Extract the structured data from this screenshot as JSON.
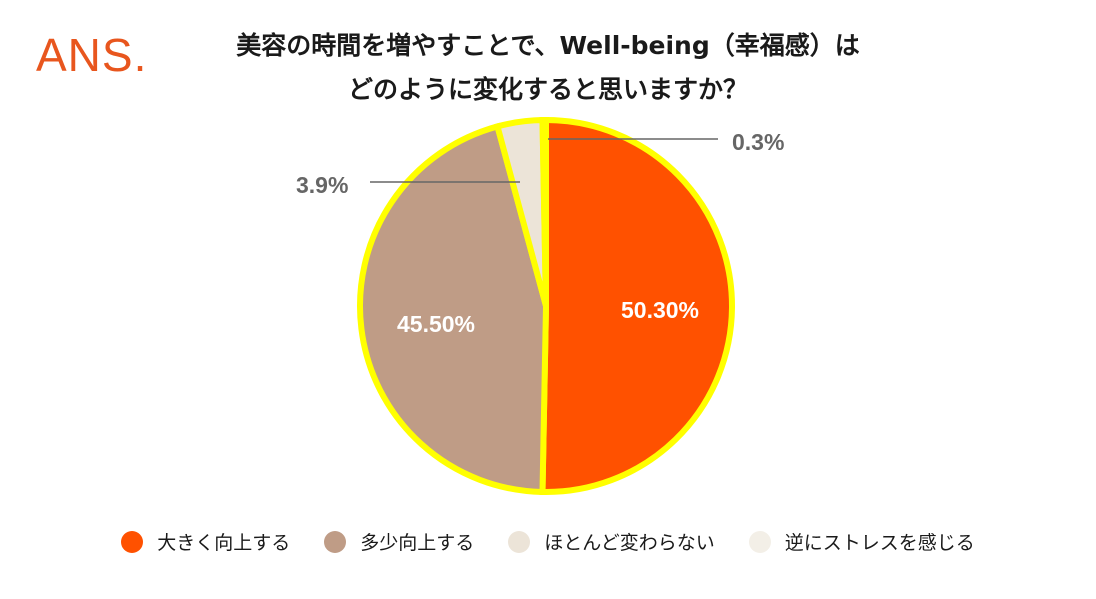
{
  "logo": "ANS.",
  "title_line1": "美容の時間を増やすことで、Well-being（幸福感）は",
  "title_line2": "どのように変化すると思いますか？",
  "chart_data": {
    "type": "pie",
    "start_angle_deg": 0,
    "direction": "clockwise",
    "slices": [
      {
        "label": "大きく向上する",
        "value": 50.3,
        "display": "50.30%",
        "color": "#ff5100",
        "label_color": "#ffffff"
      },
      {
        "label": "多少向上する",
        "value": 45.5,
        "display": "45.50%",
        "color": "#bf9c86",
        "label_color": "#ffffff"
      },
      {
        "label": "ほとんど変わらない",
        "value": 3.9,
        "display": "3.9%",
        "color": "#ece4d8",
        "label_color": "#666666"
      },
      {
        "label": "逆にストレスを感じる",
        "value": 0.3,
        "display": "0.3%",
        "color": "#f3efe7",
        "label_color": "#666666"
      }
    ],
    "legend_position": "bottom",
    "highlight_outline_color": "#ffff00"
  }
}
